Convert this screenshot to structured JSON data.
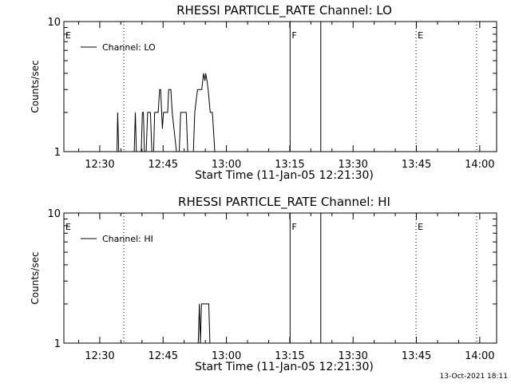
{
  "colors": {
    "background": "#ffffff",
    "foreground": "#000000"
  },
  "chart_data": [
    {
      "type": "line",
      "title": "RHESSI PARTICLE_RATE Channel: LO",
      "xlabel": "Start Time (11-Jan-05 12:21:30)",
      "ylabel": "Counts/sec",
      "yscale": "log",
      "ylim": [
        1,
        10
      ],
      "xlim": [
        "12:21:30",
        "14:04:00"
      ],
      "y_ticks": [
        {
          "v": 1,
          "label": "1"
        },
        {
          "v": 10,
          "label": "10"
        }
      ],
      "x_ticks": [
        {
          "t": "12:30",
          "label": "12:30"
        },
        {
          "t": "12:45",
          "label": "12:45"
        },
        {
          "t": "13:00",
          "label": "13:00"
        },
        {
          "t": "13:15",
          "label": "13:15"
        },
        {
          "t": "13:30",
          "label": "13:30"
        },
        {
          "t": "13:45",
          "label": "13:45"
        },
        {
          "t": "14:00",
          "label": "14:00"
        }
      ],
      "legend": {
        "label": "Channel: LO",
        "position": "top-left"
      },
      "series": [
        {
          "points": [
            [
              "12:34:05",
              1
            ],
            [
              "12:34:15",
              2
            ],
            [
              "12:34:30",
              1
            ],
            [
              "12:38:10",
              1
            ],
            [
              "12:38:25",
              2
            ],
            [
              "12:38:40",
              1
            ],
            [
              "12:39:50",
              1
            ],
            [
              "12:40:05",
              2
            ],
            [
              "12:40:20",
              2
            ],
            [
              "12:40:35",
              1
            ],
            [
              "12:41:00",
              1
            ],
            [
              "12:41:20",
              2
            ],
            [
              "12:42:00",
              2
            ],
            [
              "12:42:20",
              1
            ],
            [
              "12:42:45",
              1
            ],
            [
              "12:43:00",
              2
            ],
            [
              "12:43:50",
              2
            ],
            [
              "12:44:10",
              3
            ],
            [
              "12:44:25",
              3
            ],
            [
              "12:44:50",
              1.5
            ],
            [
              "12:45:05",
              2
            ],
            [
              "12:46:05",
              2
            ],
            [
              "12:46:20",
              3
            ],
            [
              "12:46:50",
              3
            ],
            [
              "12:47:10",
              2
            ],
            [
              "12:48:10",
              1
            ],
            [
              "12:48:50",
              1
            ],
            [
              "12:49:10",
              2
            ],
            [
              "12:50:30",
              2
            ],
            [
              "12:50:50",
              1
            ],
            [
              "12:52:10",
              1
            ],
            [
              "12:52:30",
              2
            ],
            [
              "12:53:10",
              3
            ],
            [
              "12:54:10",
              3
            ],
            [
              "12:54:35",
              4
            ],
            [
              "12:54:55",
              3.5
            ],
            [
              "12:55:05",
              4
            ],
            [
              "12:55:25",
              3.5
            ],
            [
              "12:55:40",
              3
            ],
            [
              "12:56:10",
              2
            ],
            [
              "12:56:40",
              2
            ],
            [
              "12:56:55",
              1.5
            ],
            [
              "12:57:15",
              1
            ]
          ]
        }
      ],
      "markers": [
        {
          "t": "12:21:30",
          "label": "E",
          "style": "solid"
        },
        {
          "t": "12:35:42",
          "label": "",
          "style": "dotted"
        },
        {
          "t": "13:15:05",
          "label": "F",
          "style": "solid"
        },
        {
          "t": "13:22:21",
          "label": "",
          "style": "solid"
        },
        {
          "t": "13:44:55",
          "label": "E",
          "style": "dotted"
        },
        {
          "t": "13:59:15",
          "label": "",
          "style": "dotted"
        }
      ]
    },
    {
      "type": "line",
      "title": "RHESSI PARTICLE_RATE Channel: HI",
      "xlabel": "Start Time (11-Jan-05 12:21:30)",
      "ylabel": "Counts/sec",
      "yscale": "log",
      "ylim": [
        1,
        10
      ],
      "xlim": [
        "12:21:30",
        "14:04:00"
      ],
      "y_ticks": [
        {
          "v": 1,
          "label": "1"
        },
        {
          "v": 10,
          "label": "10"
        }
      ],
      "x_ticks": [
        {
          "t": "12:30",
          "label": "12:30"
        },
        {
          "t": "12:45",
          "label": "12:45"
        },
        {
          "t": "13:00",
          "label": "13:00"
        },
        {
          "t": "13:15",
          "label": "13:15"
        },
        {
          "t": "13:30",
          "label": "13:30"
        },
        {
          "t": "13:45",
          "label": "13:45"
        },
        {
          "t": "14:00",
          "label": "14:00"
        }
      ],
      "legend": {
        "label": "Channel: HI",
        "position": "top-left"
      },
      "series": [
        {
          "points": [
            [
              "12:53:20",
              1
            ],
            [
              "12:53:35",
              2
            ],
            [
              "12:53:50",
              1
            ],
            [
              "12:54:05",
              2
            ],
            [
              "12:55:50",
              2
            ],
            [
              "12:56:05",
              1
            ]
          ]
        }
      ],
      "markers": [
        {
          "t": "12:21:30",
          "label": "E",
          "style": "solid"
        },
        {
          "t": "12:35:42",
          "label": "",
          "style": "dotted"
        },
        {
          "t": "13:15:05",
          "label": "F",
          "style": "solid"
        },
        {
          "t": "13:22:21",
          "label": "",
          "style": "solid"
        },
        {
          "t": "13:44:55",
          "label": "E",
          "style": "dotted"
        },
        {
          "t": "13:59:15",
          "label": "",
          "style": "dotted"
        }
      ]
    }
  ],
  "footer": {
    "timestamp": "13-Oct-2021 18:11"
  }
}
